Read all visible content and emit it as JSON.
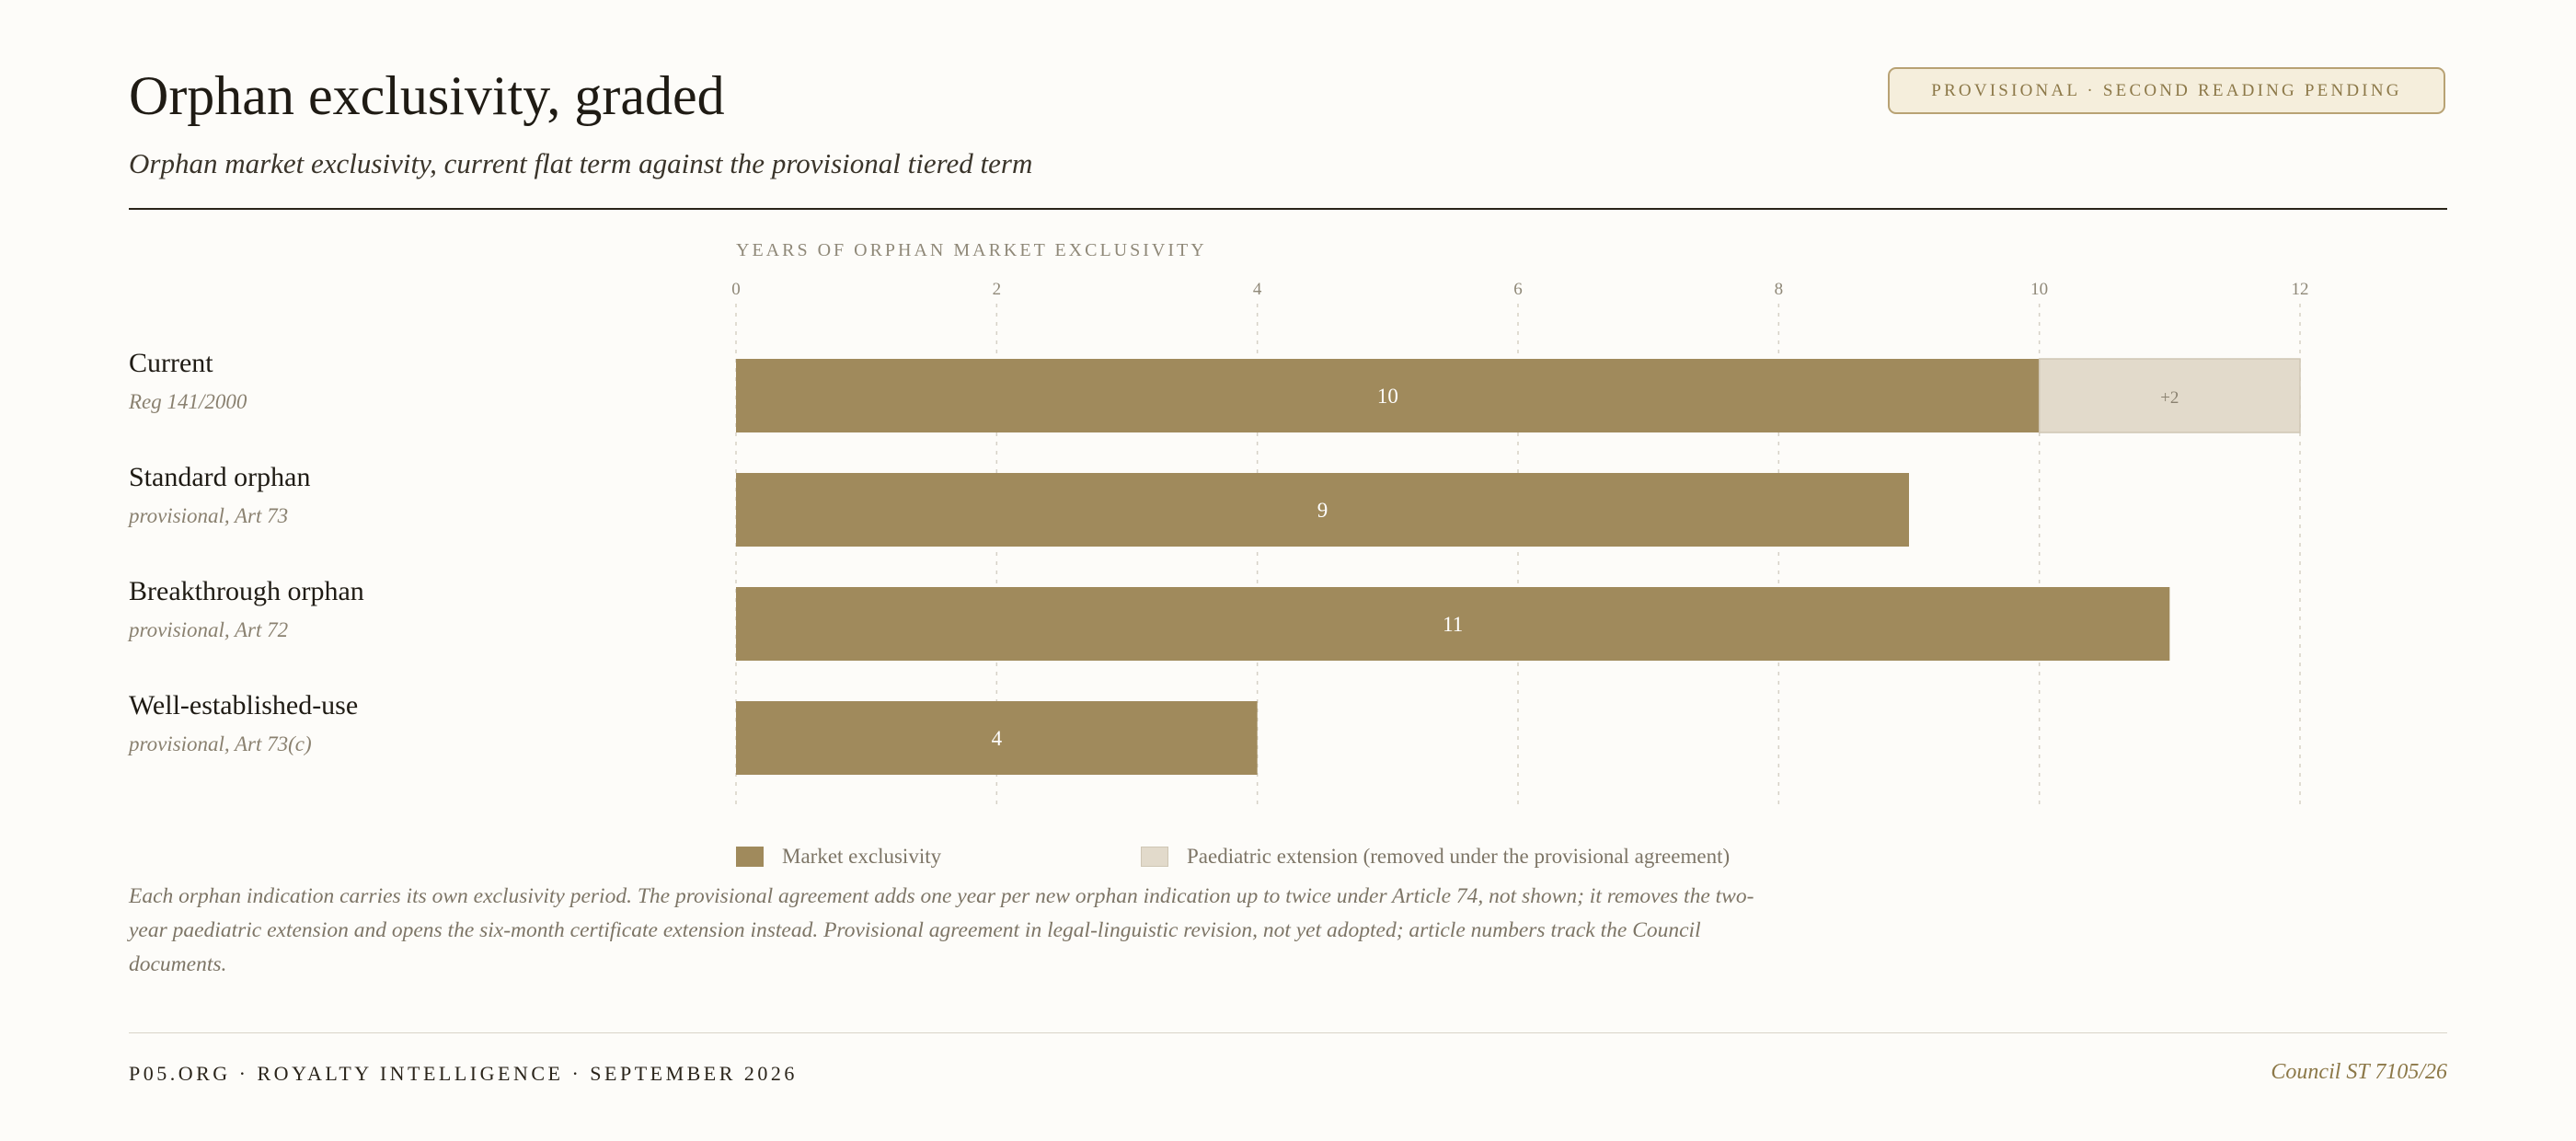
{
  "header": {
    "title": "Orphan exclusivity, graded",
    "subtitle": "Orphan market exclusivity, current flat term against the provisional tiered term",
    "status_badge": "Provisional · second reading pending"
  },
  "colors": {
    "market_exclusivity": "#a08a5c",
    "paediatric_extension": "#e2dacb",
    "badge_border": "#b8a274",
    "badge_fill": "#f5eedc"
  },
  "chart_data": {
    "type": "bar",
    "orientation": "horizontal",
    "stacked": true,
    "title": "Orphan exclusivity, graded",
    "subtitle": "Orphan market exclusivity, current flat term against the provisional tiered term",
    "xlabel": "Years of orphan market exclusivity",
    "ylabel": "",
    "xlim": [
      0,
      12
    ],
    "x_ticks": [
      0,
      2,
      4,
      6,
      8,
      10,
      12
    ],
    "grid": "vertical dashed",
    "legend_position": "bottom",
    "categories": [
      "Current",
      "Standard orphan",
      "Breakthrough orphan",
      "Well-established-use"
    ],
    "category_refs": [
      "Reg 141/2000",
      "provisional, Art 73",
      "provisional, Art 72",
      "provisional, Art 73(c)"
    ],
    "series": [
      {
        "name": "Market exclusivity",
        "values": [
          10,
          9,
          11,
          4
        ],
        "labels": [
          "10",
          "9",
          "11",
          "4"
        ]
      },
      {
        "name": "Paediatric extension (removed under the provisional agreement)",
        "values": [
          2,
          0,
          0,
          0
        ],
        "labels": [
          "+2",
          "",
          "",
          ""
        ]
      }
    ]
  },
  "note": "Each orphan indication carries its own exclusivity period. The provisional agreement adds one year per new orphan indication up to twice under Article 74, not shown; it removes the two-year paediatric extension and opens the six-month certificate extension instead. Provisional agreement in legal-linguistic revision, not yet adopted; article numbers track the Council documents.",
  "footer": {
    "left": "P05.ORG · ROYALTY INTELLIGENCE · SEPTEMBER 2026",
    "right": "Council ST 7105/26"
  }
}
